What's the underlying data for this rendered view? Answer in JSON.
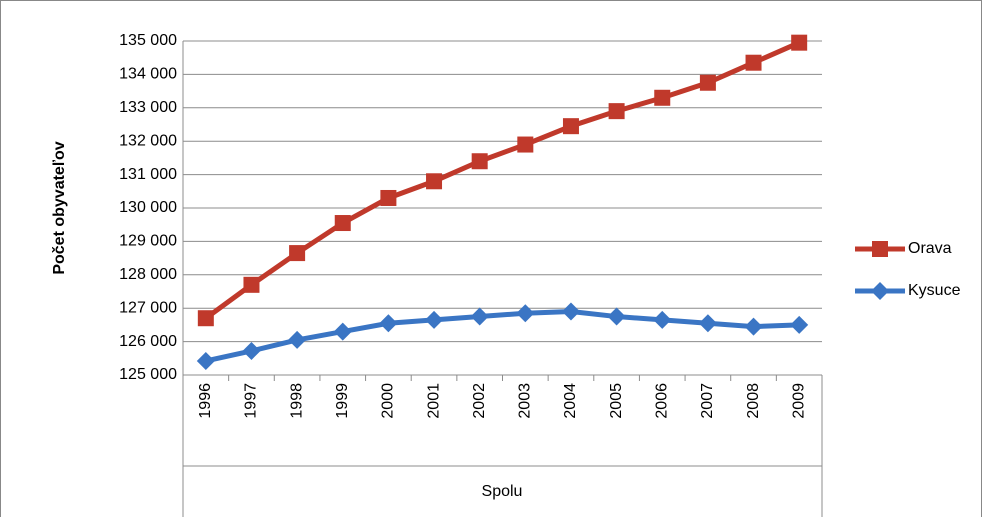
{
  "chart_data": {
    "type": "line",
    "y_label": "Počet obyvateľov",
    "x_label": "Spolu",
    "categories": [
      "1996",
      "1997",
      "1998",
      "1999",
      "2000",
      "2001",
      "2002",
      "2003",
      "2004",
      "2005",
      "2006",
      "2007",
      "2008",
      "2009"
    ],
    "series": [
      {
        "name": "Orava",
        "color": "#c0392b",
        "marker": "square",
        "values": [
          126700,
          127700,
          128650,
          129550,
          130300,
          130800,
          131400,
          131900,
          132450,
          132900,
          133300,
          133750,
          134350,
          134950
        ]
      },
      {
        "name": "Kysuce",
        "color": "#3a75c4",
        "marker": "diamond",
        "values": [
          125420,
          125720,
          126050,
          126300,
          126550,
          126650,
          126750,
          126850,
          126900,
          126750,
          126650,
          126550,
          126450,
          126500
        ]
      }
    ],
    "ylim": [
      125000,
      135000
    ],
    "yticks": [
      {
        "value": 125000,
        "label": "125 000"
      },
      {
        "value": 126000,
        "label": "126 000"
      },
      {
        "value": 127000,
        "label": "127 000"
      },
      {
        "value": 128000,
        "label": "128 000"
      },
      {
        "value": 129000,
        "label": "129 000"
      },
      {
        "value": 130000,
        "label": "130 000"
      },
      {
        "value": 131000,
        "label": "131 000"
      },
      {
        "value": 132000,
        "label": "132 000"
      },
      {
        "value": 133000,
        "label": "133 000"
      },
      {
        "value": 134000,
        "label": "134 000"
      },
      {
        "value": 135000,
        "label": "135 000"
      }
    ],
    "grid": true,
    "legend": "right"
  }
}
